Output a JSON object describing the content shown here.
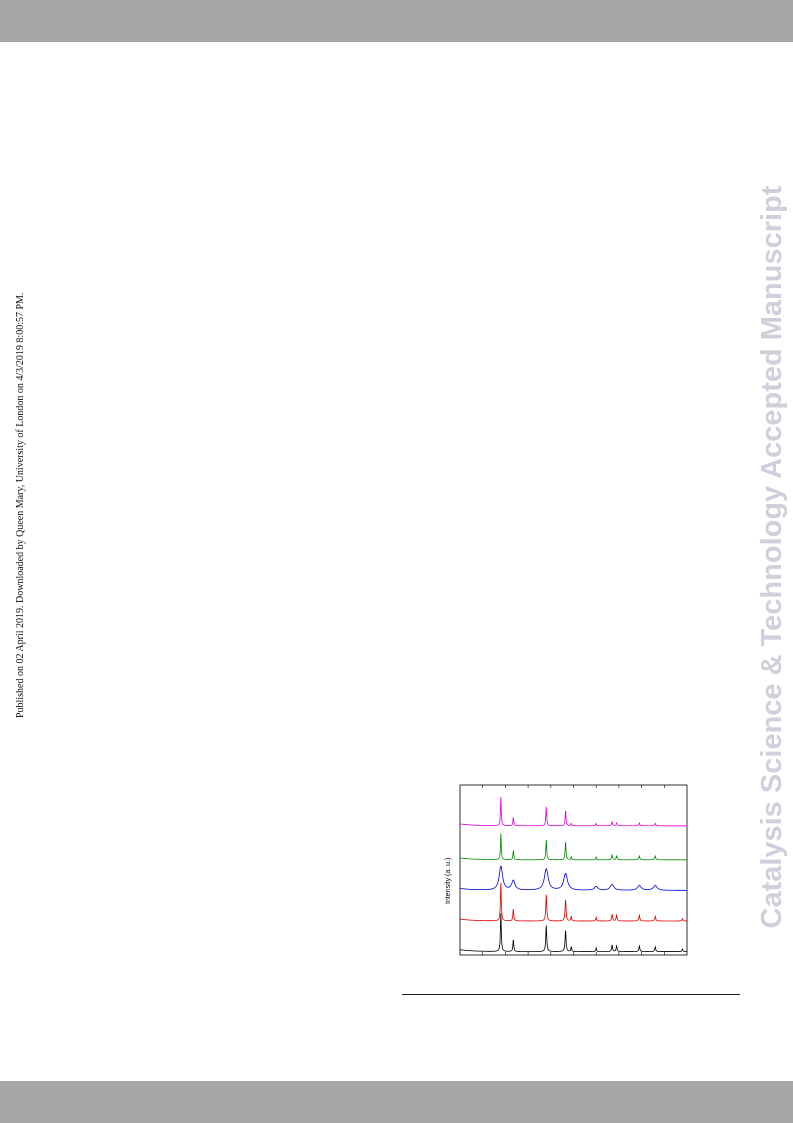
{
  "header": {},
  "side_note": {
    "text": "Published on 02 April 2019. Downloaded by Queen Mary, University of London on 4/3/2019 8:00:57 PM."
  },
  "watermark": {
    "text": "Catalysis Science & Technology Accepted Manuscript"
  },
  "figure": {
    "ylabel": "Intensity (a. u.)"
  },
  "chart_data": {
    "type": "line",
    "title": "",
    "xlabel": "",
    "ylabel": "Intensity (a. u.)",
    "x_range": [
      0,
      100
    ],
    "grid": false,
    "legend": "none",
    "series": [
      {
        "color": "#000000",
        "baseline": 0.02,
        "peaks": [
          [
            18,
            0.8,
            0.45
          ],
          [
            23.5,
            0.25,
            0.45
          ],
          [
            38,
            0.55,
            0.5
          ],
          [
            46.5,
            0.45,
            0.5
          ],
          [
            49,
            0.1,
            0.4
          ],
          [
            60,
            0.08,
            0.4
          ],
          [
            67,
            0.14,
            0.5
          ],
          [
            69,
            0.12,
            0.5
          ],
          [
            79,
            0.12,
            0.5
          ],
          [
            86,
            0.1,
            0.5
          ],
          [
            98,
            0.05,
            0.5
          ]
        ]
      },
      {
        "color": "#e00000",
        "baseline": 0.2,
        "peaks": [
          [
            18,
            0.8,
            0.45
          ],
          [
            23.5,
            0.25,
            0.45
          ],
          [
            38,
            0.55,
            0.5
          ],
          [
            46.5,
            0.45,
            0.5
          ],
          [
            49,
            0.1,
            0.4
          ],
          [
            60,
            0.08,
            0.4
          ],
          [
            67,
            0.14,
            0.5
          ],
          [
            69,
            0.12,
            0.5
          ],
          [
            79,
            0.12,
            0.5
          ],
          [
            86,
            0.1,
            0.5
          ],
          [
            98,
            0.05,
            0.5
          ]
        ]
      },
      {
        "color": "#0000e0",
        "baseline": 0.38,
        "peaks": [
          [
            18,
            0.5,
            1.8
          ],
          [
            23.5,
            0.2,
            1.8
          ],
          [
            38,
            0.45,
            2.0
          ],
          [
            46.5,
            0.35,
            2.0
          ],
          [
            60,
            0.08,
            1.8
          ],
          [
            67,
            0.12,
            2.0
          ],
          [
            79,
            0.1,
            2.0
          ],
          [
            86,
            0.1,
            2.0
          ]
        ]
      },
      {
        "color": "#008a00",
        "baseline": 0.56,
        "peaks": [
          [
            18,
            0.55,
            0.4
          ],
          [
            23.5,
            0.2,
            0.4
          ],
          [
            38,
            0.42,
            0.45
          ],
          [
            46.5,
            0.38,
            0.45
          ],
          [
            49,
            0.06,
            0.4
          ],
          [
            60,
            0.06,
            0.4
          ],
          [
            67,
            0.1,
            0.5
          ],
          [
            69,
            0.08,
            0.5
          ],
          [
            79,
            0.08,
            0.5
          ],
          [
            86,
            0.08,
            0.5
          ]
        ]
      },
      {
        "color": "#e000e0",
        "baseline": 0.76,
        "peaks": [
          [
            18,
            0.6,
            0.4
          ],
          [
            23.5,
            0.18,
            0.4
          ],
          [
            38,
            0.4,
            0.45
          ],
          [
            46.5,
            0.32,
            0.45
          ],
          [
            49,
            0.05,
            0.4
          ],
          [
            60,
            0.05,
            0.4
          ],
          [
            67,
            0.08,
            0.5
          ],
          [
            69,
            0.06,
            0.5
          ],
          [
            79,
            0.06,
            0.5
          ],
          [
            86,
            0.05,
            0.5
          ]
        ]
      }
    ]
  }
}
